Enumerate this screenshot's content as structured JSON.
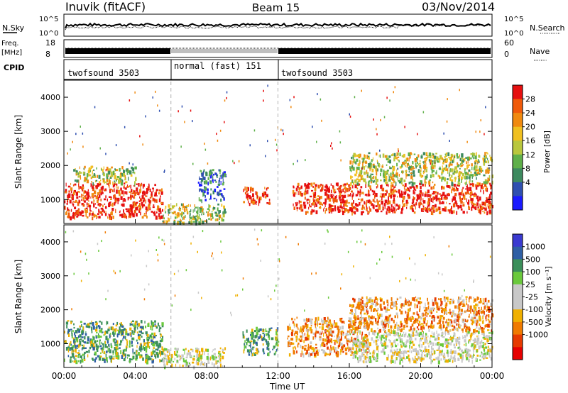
{
  "header": {
    "radar": "Inuvik (fitACF)",
    "beam": "Beam 15",
    "date": "03/Nov/2014"
  },
  "summary_panels": {
    "nsky_label": "N.Sky",
    "nsearch_label": "N.Search",
    "nsky_ticks": [
      "10^5",
      "10^0"
    ],
    "nsearch_ticks": [
      "10^5",
      "10^0"
    ],
    "freq_label_top": "Freq.",
    "freq_label_unit": "[MHz]",
    "freq_ticks": [
      "18",
      "8"
    ],
    "nave_label": "Nave",
    "nave_ticks": [
      "60",
      "0"
    ],
    "cpid_label": "CPID",
    "cpid_segments": [
      {
        "name": "twofsound 3503",
        "start_h": 0,
        "end_h": 6
      },
      {
        "name": "normal (fast) 151",
        "start_h": 6,
        "end_h": 12
      },
      {
        "name": "twofsound 3503",
        "start_h": 12,
        "end_h": 24
      }
    ]
  },
  "colors": {
    "power_scale": [
      "#1a1aff",
      "#2f4fb0",
      "#3d8a5f",
      "#5fb04a",
      "#b9c73d",
      "#f0c020",
      "#f08a10",
      "#f05a0a",
      "#e61010"
    ],
    "velocity_scale": [
      "#3a3ad0",
      "#2f5fa5",
      "#3b8f5a",
      "#6ac93c",
      "#c8c8c8",
      "#c8c8c8",
      "#f0b000",
      "#f07a00",
      "#e63a00",
      "#e60000"
    ]
  },
  "chart_data": [
    {
      "type": "heatmap",
      "panel": "power",
      "xlabel": "Time UT",
      "ylabel": "Slant Range [km]",
      "x_range_hours": [
        0,
        24
      ],
      "y_range": [
        300,
        4500
      ],
      "x_tick_labels": [
        "00:00",
        "04:00",
        "08:00",
        "12:00",
        "16:00",
        "20:00",
        "00:00"
      ],
      "y_tick_labels": [
        "1000",
        "2000",
        "3000",
        "4000"
      ],
      "y_ticks": [
        1000,
        2000,
        3000,
        4000
      ],
      "colorbar": {
        "label": "Power [dB]",
        "tick_labels": [
          "28",
          "24",
          "20",
          "16",
          "12",
          "8",
          "4"
        ]
      },
      "echo_regions": [
        {
          "t0": 0.0,
          "t1": 5.5,
          "r0": 500,
          "r1": 1500,
          "level": "high"
        },
        {
          "t0": 0.5,
          "t1": 4.0,
          "r0": 1500,
          "r1": 2000,
          "level": "medium"
        },
        {
          "t0": 5.5,
          "t1": 9.0,
          "r0": 350,
          "r1": 900,
          "level": "medium"
        },
        {
          "t0": 7.5,
          "t1": 9.0,
          "r0": 1000,
          "r1": 1900,
          "level": "low"
        },
        {
          "t0": 10.0,
          "t1": 11.5,
          "r0": 900,
          "r1": 1400,
          "level": "high"
        },
        {
          "t0": 12.8,
          "t1": 24.0,
          "r0": 650,
          "r1": 1500,
          "level": "high"
        },
        {
          "t0": 16.0,
          "t1": 24.0,
          "r0": 1500,
          "r1": 2400,
          "level": "medium"
        }
      ]
    },
    {
      "type": "heatmap",
      "panel": "velocity",
      "xlabel": "Time UT",
      "ylabel": "Slant Range [km]",
      "x_range_hours": [
        0,
        24
      ],
      "y_range": [
        300,
        4500
      ],
      "x_tick_labels": [
        "00:00",
        "04:00",
        "08:00",
        "12:00",
        "16:00",
        "20:00",
        "00:00"
      ],
      "y_tick_labels": [
        "1000",
        "2000",
        "3000",
        "4000"
      ],
      "y_ticks": [
        1000,
        2000,
        3000,
        4000
      ],
      "colorbar": {
        "label": "Velocity [m s⁻¹]",
        "tick_labels": [
          "1000",
          "500",
          "100",
          "25",
          "-25",
          "-100",
          "-500",
          "-1000"
        ]
      },
      "echo_regions": [
        {
          "t0": 0.0,
          "t1": 5.5,
          "r0": 500,
          "r1": 1700,
          "level": "toward"
        },
        {
          "t0": 5.5,
          "t1": 9.0,
          "r0": 350,
          "r1": 900,
          "level": "slow"
        },
        {
          "t0": 10.0,
          "t1": 12.0,
          "r0": 700,
          "r1": 1500,
          "level": "toward"
        },
        {
          "t0": 12.5,
          "t1": 17.0,
          "r0": 700,
          "r1": 1800,
          "level": "away"
        },
        {
          "t0": 16.0,
          "t1": 24.0,
          "r0": 500,
          "r1": 1400,
          "level": "slow"
        },
        {
          "t0": 16.0,
          "t1": 24.0,
          "r0": 1400,
          "r1": 2400,
          "level": "away"
        }
      ]
    }
  ]
}
